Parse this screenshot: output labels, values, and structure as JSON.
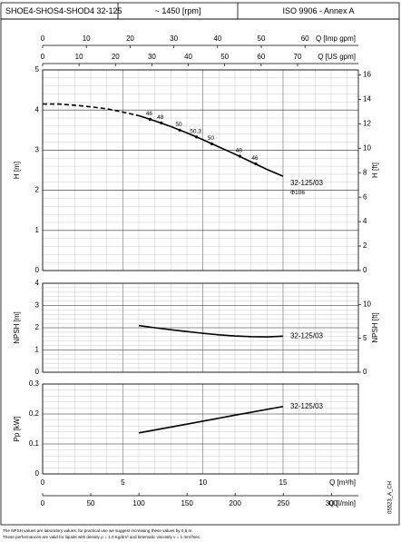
{
  "header": {
    "model": "SHOE4-SHOS4-SHOD4 32-125",
    "speed": "~ 1450 [rpm]",
    "standard": "ISO 9906 - Annex A"
  },
  "q_axes": {
    "imp_gpm": {
      "label": "Q [Imp gpm]",
      "xlim": [
        0,
        72.2
      ],
      "xticks": [
        0,
        10,
        20,
        30,
        40,
        50,
        60
      ]
    },
    "us_gpm": {
      "label": "Q [US gpm]",
      "xlim": [
        0,
        86.7
      ],
      "xticks": [
        0,
        10,
        20,
        30,
        40,
        50,
        60,
        70
      ]
    },
    "m3h": {
      "label": "Q [m³/h]",
      "xlim": [
        0,
        19.7
      ],
      "xticks": [
        0,
        5,
        10,
        15
      ]
    },
    "lmin": {
      "label": "Q [l/min]",
      "xlim": [
        0,
        328
      ],
      "xticks": [
        0,
        50,
        100,
        150,
        200,
        250,
        300
      ]
    }
  },
  "chart_data": [
    {
      "type": "line",
      "ylabel": "H [m]",
      "y2label": "H [ft]",
      "ylim": [
        0,
        5
      ],
      "yticks": [
        0,
        1,
        2,
        3,
        4,
        5
      ],
      "y2lim": [
        0,
        16.4
      ],
      "y2ticks": [
        0,
        2,
        4,
        6,
        8,
        10,
        12,
        14,
        16
      ],
      "grid": true,
      "series": [
        {
          "style": "dashed",
          "color": "#000000",
          "x": [
            0,
            1,
            2,
            3,
            4,
            5,
            6
          ],
          "values": [
            4.15,
            4.15,
            4.12,
            4.08,
            4.03,
            3.95,
            3.86
          ]
        },
        {
          "name": "32-125/03",
          "note": "Φ106",
          "style": "solid",
          "color": "#000000",
          "x": [
            6,
            7,
            8,
            9,
            10,
            11,
            12,
            13,
            14,
            15
          ],
          "values": [
            3.86,
            3.73,
            3.59,
            3.43,
            3.26,
            3.08,
            2.9,
            2.71,
            2.52,
            2.35
          ]
        }
      ],
      "efficiency": {
        "x": [
          6.7,
          7.4,
          8.55,
          9.6,
          10.55,
          12.3,
          13.3
        ],
        "h": [
          3.77,
          3.68,
          3.5,
          3.33,
          3.16,
          2.85,
          2.66
        ],
        "values": [
          46,
          48,
          50,
          50.3,
          50,
          48,
          46
        ]
      }
    },
    {
      "type": "line",
      "ylabel": "NPSH [m]",
      "y2label": "NPSH [ft]",
      "ylim": [
        0,
        4
      ],
      "yticks": [
        0,
        1,
        2,
        3,
        4
      ],
      "y2lim": [
        0,
        13.12
      ],
      "y2ticks": [
        0,
        5,
        10
      ],
      "grid": true,
      "series": [
        {
          "name": "32-125/03",
          "style": "solid",
          "color": "#000000",
          "x": [
            6,
            7,
            8,
            9,
            10,
            11,
            12,
            13,
            14,
            15
          ],
          "values": [
            2.1,
            2.0,
            1.91,
            1.83,
            1.75,
            1.68,
            1.63,
            1.6,
            1.59,
            1.62
          ]
        }
      ]
    },
    {
      "type": "line",
      "ylabel": "Pp [kW]",
      "ylim": [
        0,
        0.3
      ],
      "yticks": [
        0,
        0.1,
        0.2,
        0.3
      ],
      "grid": true,
      "series": [
        {
          "name": "32-125/03",
          "style": "solid",
          "color": "#000000",
          "x": [
            6,
            9,
            12,
            15
          ],
          "values": [
            0.137,
            0.166,
            0.196,
            0.225
          ]
        }
      ]
    }
  ],
  "code": "05523_A_CH",
  "footnotes": [
    "The NPSH values are laboratory values; for practical use we suggest increasing these values by 0,5 m.",
    "These performances are valid for liquids with density ρ = 1.0 Kg/dm³ and kinematic viscosity ν = 1 mm²/sec."
  ]
}
